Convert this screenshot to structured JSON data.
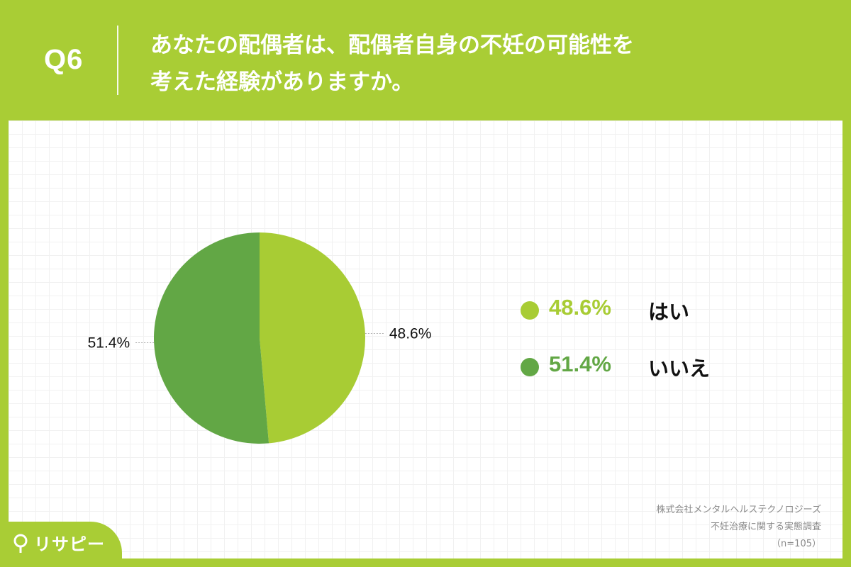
{
  "header": {
    "q_label": "Q6",
    "question_line1": "あなたの配偶者は、配偶者自身の不妊の可能性を",
    "question_line2": "考えた経験がありますか。"
  },
  "colors": {
    "background": "#a9cd35",
    "series_yes": "#a8cc34",
    "series_no": "#62a745",
    "panel": "#ffffff"
  },
  "chart_data": {
    "type": "pie",
    "categories": [
      "はい",
      "いいえ"
    ],
    "values": [
      48.6,
      51.4
    ],
    "value_labels": [
      "48.6%",
      "51.4%"
    ],
    "colors": [
      "#a8cc34",
      "#62a745"
    ],
    "start_angle": "12 o'clock",
    "direction": "clockwise",
    "legend_position": "right"
  },
  "legend": {
    "items": [
      {
        "pct": "48.6%",
        "name": "はい"
      },
      {
        "pct": "51.4%",
        "name": "いいえ"
      }
    ]
  },
  "source": {
    "line1": "株式会社メンタルヘルステクノロジーズ",
    "line2": "不妊治療に関する実態調査",
    "line3": "（n=105）"
  },
  "brand": {
    "name": "リサピー",
    "icon": "pin-icon"
  }
}
